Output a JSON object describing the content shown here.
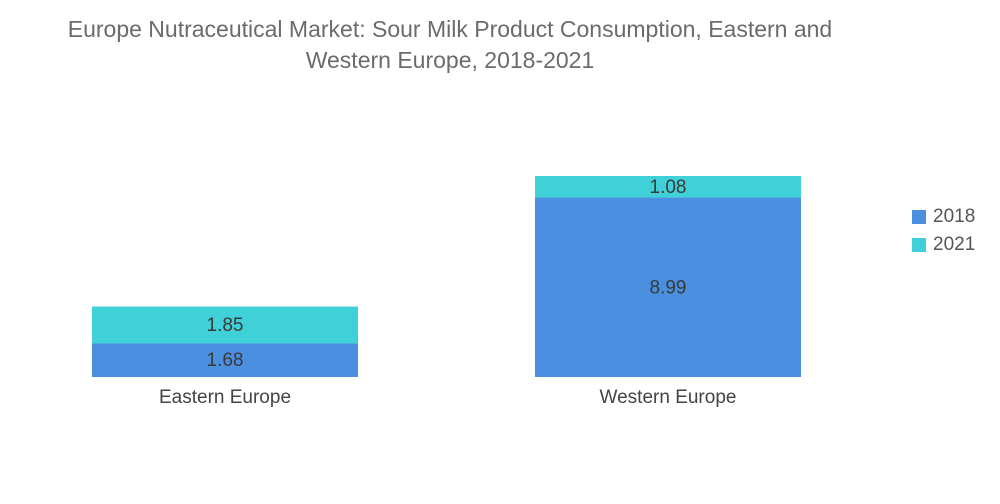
{
  "chart_data": {
    "type": "bar",
    "stacked": true,
    "title": "Europe Nutraceutical Market: Sour Milk Product Consumption, Eastern and Western Europe, 2018-2021",
    "title_lines": [
      "Europe Nutraceutical Market: Sour Milk Product Consumption, Eastern and",
      "Western Europe, 2018-2021"
    ],
    "categories": [
      "Eastern Europe",
      "Western Europe"
    ],
    "series": [
      {
        "name": "2018",
        "color": "#4a8fe0",
        "values": [
          1.68,
          8.99
        ]
      },
      {
        "name": "2021",
        "color": "#3fd0d8",
        "values": [
          1.85,
          1.08
        ]
      }
    ],
    "value_labels": [
      [
        "1.68",
        "8.99"
      ],
      [
        "1.85",
        "1.08"
      ]
    ],
    "legend_position": "right",
    "grid": false,
    "ylim": [
      0,
      10.07
    ]
  }
}
